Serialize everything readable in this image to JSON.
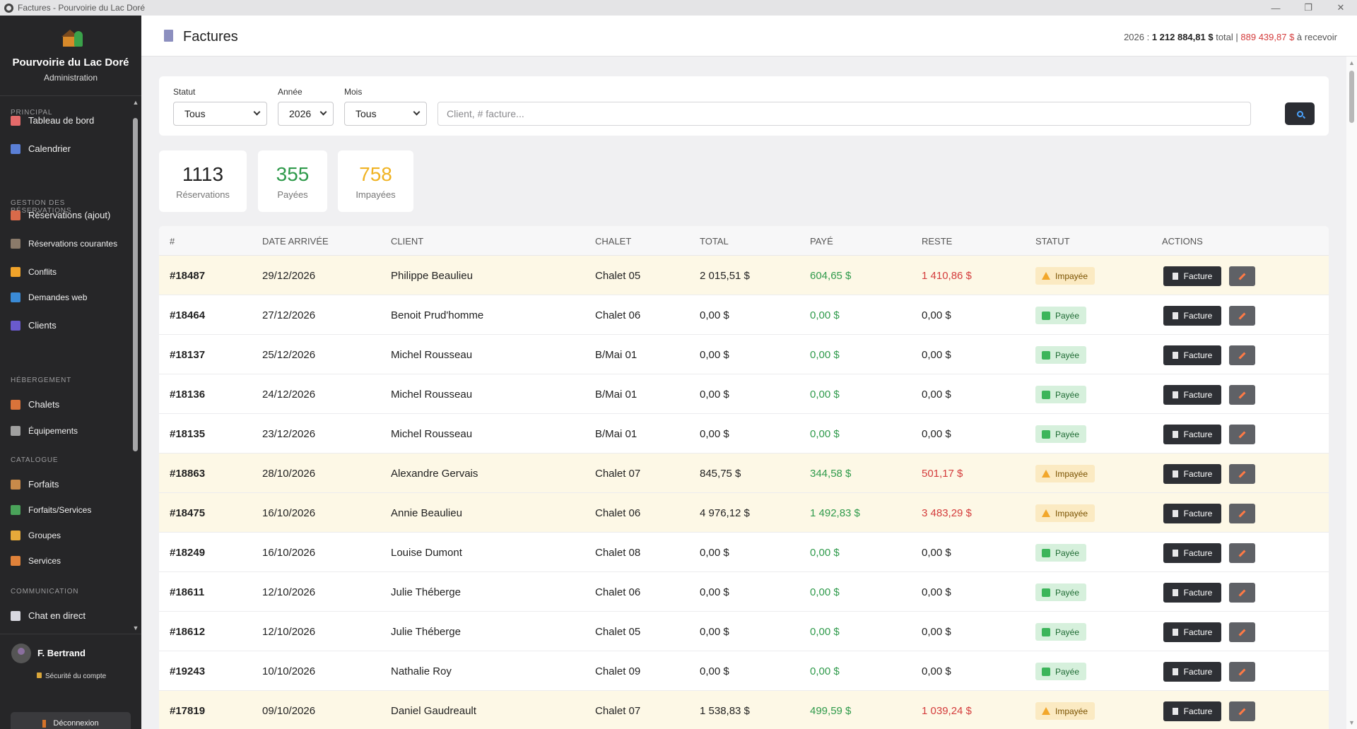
{
  "window": {
    "title": "Factures - Pourvoirie du Lac Doré"
  },
  "brand": {
    "name": "Pourvoirie du Lac Doré",
    "subtitle": "Administration"
  },
  "sidebar": {
    "sections": [
      {
        "title": "PRINCIPAL",
        "items": [
          {
            "label": "Tableau de bord",
            "icon": "bar-chart-icon",
            "color": "#e46a6a"
          },
          {
            "label": "Calendrier",
            "icon": "calendar-icon",
            "color": "#5a7fd6"
          }
        ]
      },
      {
        "title": "GESTION DES RÉSERVATIONS",
        "items": [
          {
            "label": "Réservations (ajout)",
            "icon": "clipboard-icon",
            "color": "#d96a4a"
          },
          {
            "label": "Réservations courantes",
            "icon": "clipboard-list-icon",
            "color": "#8a7a6a"
          },
          {
            "label": "Conflits",
            "icon": "warning-icon",
            "color": "#f0a32a"
          },
          {
            "label": "Demandes web",
            "icon": "globe-icon",
            "color": "#3a8ad6"
          },
          {
            "label": "Clients",
            "icon": "users-icon",
            "color": "#6a5acd"
          }
        ]
      },
      {
        "title": "HÉBERGEMENT",
        "items": [
          {
            "label": "Chalets",
            "icon": "cabin-icon",
            "color": "#d9733a"
          },
          {
            "label": "Équipements",
            "icon": "wrench-icon",
            "color": "#a0a0a0"
          }
        ]
      },
      {
        "title": "CATALOGUE",
        "items": [
          {
            "label": "Forfaits",
            "icon": "package-icon",
            "color": "#c88a4a"
          },
          {
            "label": "Forfaits/Services",
            "icon": "puzzle-icon",
            "color": "#4aa35a"
          },
          {
            "label": "Groupes",
            "icon": "folder-icon",
            "color": "#e6a93a"
          },
          {
            "label": "Services",
            "icon": "bell-icon",
            "color": "#e0823a"
          }
        ]
      },
      {
        "title": "COMMUNICATION",
        "items": [
          {
            "label": "Chat en direct",
            "icon": "chat-icon",
            "color": "#d8d8e0"
          }
        ]
      }
    ]
  },
  "user": {
    "name": "F. Bertrand",
    "security_label": "Sécurité du compte",
    "logout_label": "Déconnexion"
  },
  "header": {
    "title": "Factures",
    "year": "2026",
    "total_amount": "1 212 884,81 $",
    "total_word": "total",
    "due_amount": "889 439,87 $",
    "due_word": "à recevoir"
  },
  "filters": {
    "status_label": "Statut",
    "status_value": "Tous",
    "year_label": "Année",
    "year_value": "2026",
    "month_label": "Mois",
    "month_value": "Tous",
    "search_placeholder": "Client, # facture..."
  },
  "stats": [
    {
      "value": "1113",
      "label": "Réservations",
      "color": "#222222"
    },
    {
      "value": "355",
      "label": "Payées",
      "color": "#2f9a4b"
    },
    {
      "value": "758",
      "label": "Impayées",
      "color": "#f0b323"
    }
  ],
  "table": {
    "columns": [
      "#",
      "DATE ARRIVÉE",
      "CLIENT",
      "CHALET",
      "TOTAL",
      "PAYÉ",
      "RESTE",
      "STATUT",
      "ACTIONS"
    ],
    "facture_label": "Facture",
    "rows": [
      {
        "id": "#18487",
        "date": "29/12/2026",
        "client": "Philippe Beaulieu",
        "chalet": "Chalet 05",
        "total": "2 015,51 $",
        "paid": "604,65 $",
        "remaining": "1 410,86 $",
        "status": "Impayée"
      },
      {
        "id": "#18464",
        "date": "27/12/2026",
        "client": "Benoit Prud'homme",
        "chalet": "Chalet 06",
        "total": "0,00 $",
        "paid": "0,00 $",
        "remaining": "0,00 $",
        "status": "Payée"
      },
      {
        "id": "#18137",
        "date": "25/12/2026",
        "client": "Michel Rousseau",
        "chalet": "B/Mai 01",
        "total": "0,00 $",
        "paid": "0,00 $",
        "remaining": "0,00 $",
        "status": "Payée"
      },
      {
        "id": "#18136",
        "date": "24/12/2026",
        "client": "Michel Rousseau",
        "chalet": "B/Mai 01",
        "total": "0,00 $",
        "paid": "0,00 $",
        "remaining": "0,00 $",
        "status": "Payée"
      },
      {
        "id": "#18135",
        "date": "23/12/2026",
        "client": "Michel Rousseau",
        "chalet": "B/Mai 01",
        "total": "0,00 $",
        "paid": "0,00 $",
        "remaining": "0,00 $",
        "status": "Payée"
      },
      {
        "id": "#18863",
        "date": "28/10/2026",
        "client": "Alexandre Gervais",
        "chalet": "Chalet 07",
        "total": "845,75 $",
        "paid": "344,58 $",
        "remaining": "501,17 $",
        "status": "Impayée"
      },
      {
        "id": "#18475",
        "date": "16/10/2026",
        "client": "Annie Beaulieu",
        "chalet": "Chalet 06",
        "total": "4 976,12 $",
        "paid": "1 492,83 $",
        "remaining": "3 483,29 $",
        "status": "Impayée"
      },
      {
        "id": "#18249",
        "date": "16/10/2026",
        "client": "Louise Dumont",
        "chalet": "Chalet 08",
        "total": "0,00 $",
        "paid": "0,00 $",
        "remaining": "0,00 $",
        "status": "Payée"
      },
      {
        "id": "#18611",
        "date": "12/10/2026",
        "client": "Julie Théberge",
        "chalet": "Chalet 06",
        "total": "0,00 $",
        "paid": "0,00 $",
        "remaining": "0,00 $",
        "status": "Payée"
      },
      {
        "id": "#18612",
        "date": "12/10/2026",
        "client": "Julie Théberge",
        "chalet": "Chalet 05",
        "total": "0,00 $",
        "paid": "0,00 $",
        "remaining": "0,00 $",
        "status": "Payée"
      },
      {
        "id": "#19243",
        "date": "10/10/2026",
        "client": "Nathalie Roy",
        "chalet": "Chalet 09",
        "total": "0,00 $",
        "paid": "0,00 $",
        "remaining": "0,00 $",
        "status": "Payée"
      },
      {
        "id": "#17819",
        "date": "09/10/2026",
        "client": "Daniel Gaudreault",
        "chalet": "Chalet 07",
        "total": "1 538,83 $",
        "paid": "499,59 $",
        "remaining": "1 039,24 $",
        "status": "Impayée"
      }
    ]
  }
}
